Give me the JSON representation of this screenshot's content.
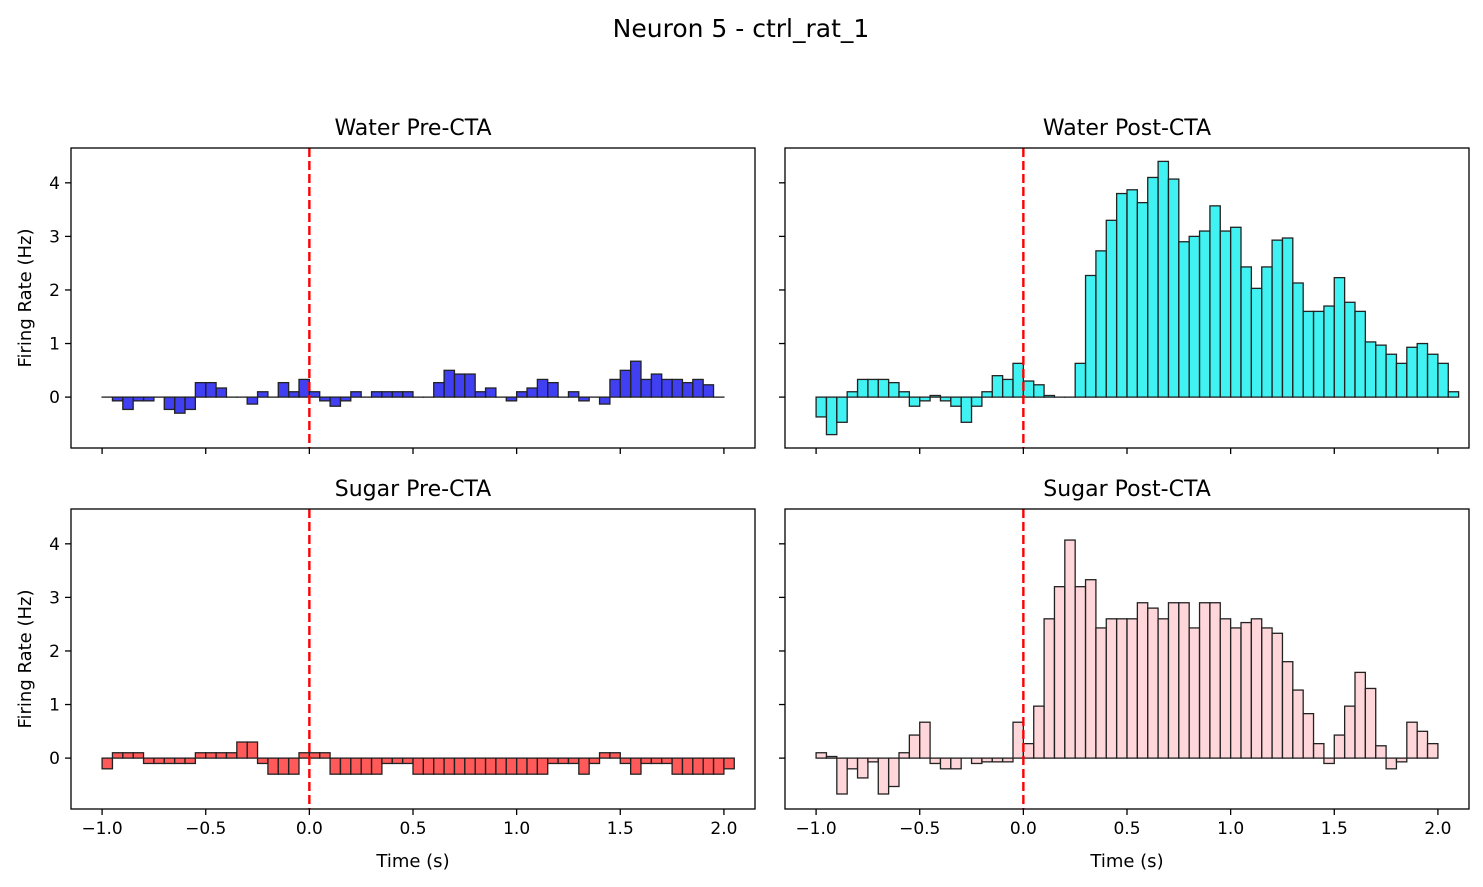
{
  "figure": {
    "title": "Neuron 5 - ctrl_rat_1"
  },
  "chart_data": [
    {
      "type": "bar",
      "title": "Water Pre-CTA",
      "color": "#0000ee",
      "xlabel": "",
      "ylabel": "Firing Rate (Hz)",
      "xlim": [
        -1.15,
        2.15
      ],
      "ylim": [
        -0.95,
        4.65
      ],
      "xticks": [
        "−1.0",
        "−0.5",
        "0.0",
        "0.5",
        "1.0",
        "1.5",
        "2.0"
      ],
      "yticks": [
        "0",
        "1",
        "2",
        "3",
        "4"
      ],
      "stimulus_x": 0.0,
      "bin_start": -1.0,
      "bin_width": 0.05,
      "values": [
        0.0,
        -0.07,
        -0.23,
        -0.07,
        -0.07,
        0.0,
        -0.23,
        -0.3,
        -0.23,
        0.27,
        0.27,
        0.17,
        0.0,
        0.0,
        -0.13,
        0.1,
        0.0,
        0.27,
        0.1,
        0.33,
        0.1,
        -0.07,
        -0.17,
        -0.07,
        0.1,
        0.0,
        0.1,
        0.1,
        0.1,
        0.1,
        0.0,
        0.0,
        0.27,
        0.5,
        0.43,
        0.43,
        0.1,
        0.17,
        0.0,
        -0.07,
        0.1,
        0.17,
        0.33,
        0.27,
        0.0,
        0.1,
        -0.07,
        0.0,
        -0.13,
        0.33,
        0.5,
        0.67,
        0.33,
        0.43,
        0.33,
        0.33,
        0.27,
        0.33,
        0.23,
        0.0
      ]
    },
    {
      "type": "bar",
      "title": "Water Post-CTA",
      "color": "#00eeee",
      "xlabel": "",
      "ylabel": "",
      "xlim": [
        -1.15,
        2.15
      ],
      "ylim": [
        -0.95,
        4.65
      ],
      "xticks": [
        "−1.0",
        "−0.5",
        "0.0",
        "0.5",
        "1.0",
        "1.5",
        "2.0"
      ],
      "yticks": [
        "0",
        "1",
        "2",
        "3",
        "4"
      ],
      "stimulus_x": 0.0,
      "bin_start": -1.0,
      "bin_width": 0.05,
      "values": [
        -0.37,
        -0.7,
        -0.47,
        0.1,
        0.33,
        0.33,
        0.33,
        0.27,
        0.1,
        -0.17,
        -0.07,
        0.03,
        -0.07,
        -0.17,
        -0.47,
        -0.17,
        0.1,
        0.4,
        0.33,
        0.63,
        0.3,
        0.23,
        0.03,
        0.0,
        0.0,
        0.63,
        2.27,
        2.73,
        3.3,
        3.8,
        3.87,
        3.63,
        4.1,
        4.4,
        4.07,
        2.9,
        3.0,
        3.1,
        3.57,
        3.1,
        3.17,
        2.43,
        2.03,
        2.43,
        2.93,
        2.97,
        2.13,
        1.6,
        1.6,
        1.7,
        2.23,
        1.77,
        1.6,
        1.03,
        0.97,
        0.8,
        0.63,
        0.93,
        1.0,
        0.8,
        0.63,
        0.1
      ]
    },
    {
      "type": "bar",
      "title": "Sugar Pre-CTA",
      "color": "#ff2222",
      "xlabel": "Time (s)",
      "ylabel": "Firing Rate (Hz)",
      "xlim": [
        -1.15,
        2.15
      ],
      "ylim": [
        -0.95,
        4.65
      ],
      "xticks": [
        "−1.0",
        "−0.5",
        "0.0",
        "0.5",
        "1.0",
        "1.5",
        "2.0"
      ],
      "yticks": [
        "0",
        "1",
        "2",
        "3",
        "4"
      ],
      "stimulus_x": 0.0,
      "bin_start": -1.0,
      "bin_width": 0.05,
      "values": [
        -0.2,
        0.1,
        0.1,
        0.1,
        -0.1,
        -0.1,
        -0.1,
        -0.1,
        -0.1,
        0.1,
        0.1,
        0.1,
        0.1,
        0.3,
        0.3,
        -0.1,
        -0.3,
        -0.3,
        -0.3,
        0.1,
        0.1,
        0.1,
        -0.3,
        -0.3,
        -0.3,
        -0.3,
        -0.3,
        -0.1,
        -0.1,
        -0.1,
        -0.3,
        -0.3,
        -0.3,
        -0.3,
        -0.3,
        -0.3,
        -0.3,
        -0.3,
        -0.3,
        -0.3,
        -0.3,
        -0.3,
        -0.3,
        -0.1,
        -0.1,
        -0.1,
        -0.3,
        -0.1,
        0.1,
        0.1,
        -0.1,
        -0.3,
        -0.1,
        -0.1,
        -0.1,
        -0.3,
        -0.3,
        -0.3,
        -0.3,
        -0.3,
        -0.2
      ]
    },
    {
      "type": "bar",
      "title": "Sugar Post-CTA",
      "color": "#ffc8cc",
      "xlabel": "Time (s)",
      "ylabel": "",
      "xlim": [
        -1.15,
        2.15
      ],
      "ylim": [
        -0.95,
        4.65
      ],
      "xticks": [
        "−1.0",
        "−0.5",
        "0.0",
        "0.5",
        "1.0",
        "1.5",
        "2.0"
      ],
      "yticks": [
        "0",
        "1",
        "2",
        "3",
        "4"
      ],
      "stimulus_x": 0.0,
      "bin_start": -1.0,
      "bin_width": 0.05,
      "values": [
        0.1,
        0.03,
        -0.67,
        -0.2,
        -0.37,
        -0.07,
        -0.67,
        -0.53,
        0.1,
        0.43,
        0.67,
        -0.1,
        -0.2,
        -0.2,
        0.0,
        -0.1,
        -0.07,
        -0.07,
        -0.07,
        0.67,
        0.27,
        0.97,
        2.6,
        3.2,
        4.07,
        3.2,
        3.33,
        2.43,
        2.6,
        2.6,
        2.6,
        2.9,
        2.8,
        2.6,
        2.9,
        2.9,
        2.43,
        2.9,
        2.9,
        2.6,
        2.43,
        2.53,
        2.6,
        2.43,
        2.33,
        1.8,
        1.27,
        0.83,
        0.27,
        -0.1,
        0.43,
        0.97,
        1.6,
        1.3,
        0.23,
        -0.2,
        -0.07,
        0.67,
        0.5,
        0.27
      ]
    }
  ]
}
